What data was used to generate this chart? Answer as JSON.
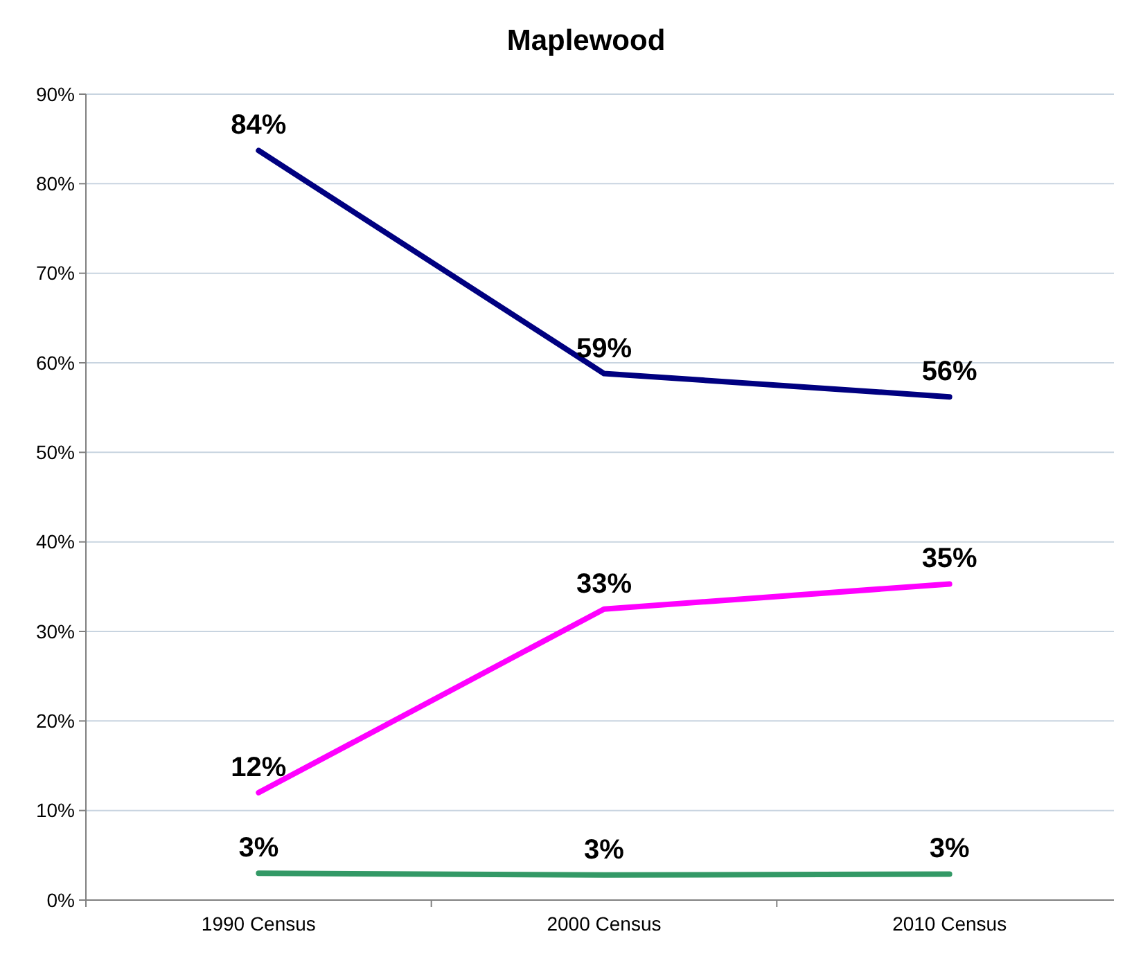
{
  "chart_data": {
    "type": "line",
    "title": "Maplewood",
    "categories": [
      "1990 Census",
      "2000 Census",
      "2010 Census"
    ],
    "series": [
      {
        "color": "#000080",
        "values": [
          83.7,
          58.8,
          56.2
        ],
        "value_labels": [
          "84%",
          "59%",
          "56%"
        ]
      },
      {
        "color": "#ff00ff",
        "values": [
          12,
          32.5,
          35.3
        ],
        "value_labels": [
          "12%",
          "33%",
          "35%"
        ]
      },
      {
        "color": "#339966",
        "values": [
          3,
          2.8,
          2.9
        ],
        "value_labels": [
          "3%",
          "3%",
          "3%"
        ]
      }
    ],
    "ylim": [
      0,
      90
    ],
    "yticks": [
      {
        "value": 0,
        "label": "0%"
      },
      {
        "value": 10,
        "label": "10%"
      },
      {
        "value": 20,
        "label": "20%"
      },
      {
        "value": 30,
        "label": "30%"
      },
      {
        "value": 40,
        "label": "40%"
      },
      {
        "value": 50,
        "label": "50%"
      },
      {
        "value": 60,
        "label": "60%"
      },
      {
        "value": 70,
        "label": "70%"
      },
      {
        "value": 80,
        "label": "80%"
      },
      {
        "value": 90,
        "label": "90%"
      }
    ],
    "grid": "y",
    "marker": "none",
    "line_style": "solid"
  }
}
